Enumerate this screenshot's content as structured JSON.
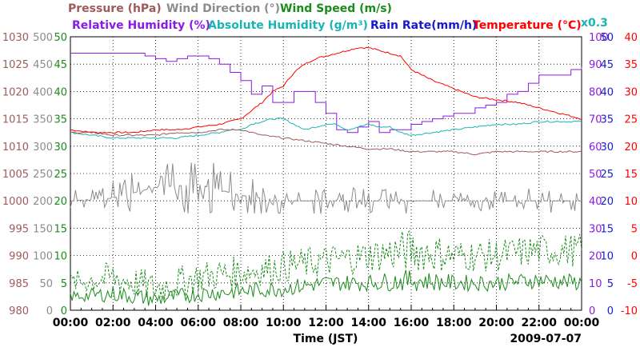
{
  "chart_data": {
    "type": "line",
    "legend_row1": [
      {
        "name": "Pressure (hPa)",
        "color": "#a05a5a"
      },
      {
        "name": "Wind Direction (°)",
        "color": "#8c8c8c"
      },
      {
        "name": "Wind Speed (m/s)",
        "color": "#1a8c1a"
      }
    ],
    "legend_row2": [
      {
        "name": "Relative Humidity (%)",
        "color": "#8a1ae6"
      },
      {
        "name": "Absolute Humidity (g/m³)",
        "color": "#1ab4b4"
      },
      {
        "name": "Rain Rate(mm/h)",
        "color": "#1a1acc"
      },
      {
        "name": "Temperature (°C)",
        "color": "#ff0000"
      }
    ],
    "rain_multiplier_label": "x0.3",
    "xlabel": "Time (JST)",
    "date_label": "2009-07-07",
    "x_ticks": [
      "00:00",
      "02:00",
      "04:00",
      "06:00",
      "08:00",
      "10:00",
      "12:00",
      "14:00",
      "16:00",
      "18:00",
      "20:00",
      "22:00",
      "00:00"
    ],
    "xlim": [
      0,
      24
    ],
    "grid": true,
    "axes_left": [
      {
        "name": "pressure",
        "color": "#a05a5a",
        "range": [
          980,
          1030
        ],
        "ticks": [
          "980",
          "985",
          "990",
          "995",
          "1000",
          "1005",
          "1010",
          "1015",
          "1020",
          "1025",
          "1030"
        ]
      },
      {
        "name": "wind-direction",
        "color": "#8c8c8c",
        "range": [
          0,
          500
        ],
        "ticks": [
          "0",
          "50",
          "100",
          "150",
          "200",
          "250",
          "300",
          "350",
          "400",
          "450",
          "500"
        ]
      },
      {
        "name": "wind-speed",
        "color": "#1a8c1a",
        "range": [
          0,
          50
        ],
        "ticks": [
          "0",
          "5",
          "10",
          "15",
          "20",
          "25",
          "30",
          "35",
          "40",
          "45",
          "50"
        ]
      }
    ],
    "axes_right": [
      {
        "name": "relative-humidity",
        "color": "#8a1ae6",
        "range": [
          0,
          100
        ],
        "ticks": [
          "0",
          "10",
          "20",
          "30",
          "40",
          "50",
          "60",
          "70",
          "80",
          "90",
          "100"
        ]
      },
      {
        "name": "rain-rate",
        "color": "#1a1acc",
        "range": [
          0,
          50
        ],
        "ticks": [
          "0",
          "5",
          "10",
          "15",
          "20",
          "25",
          "30",
          "35",
          "40",
          "45",
          "50"
        ]
      },
      {
        "name": "temperature",
        "color": "#ff0000",
        "range": [
          -10,
          40
        ],
        "ticks": [
          "-10",
          "-5",
          "0",
          "5",
          "10",
          "15",
          "20",
          "25",
          "30",
          "35",
          "40"
        ]
      }
    ],
    "series": [
      {
        "name": "Relative Humidity",
        "axis": "relative-humidity",
        "color": "#8a1ae6",
        "style": "step",
        "x": [
          0,
          1,
          2,
          3,
          3.5,
          4,
          4.5,
          5,
          5.5,
          6,
          6.5,
          7,
          7.5,
          8,
          8.5,
          9,
          9.5,
          10,
          10.5,
          11,
          11.5,
          12,
          12.5,
          13,
          13.5,
          14,
          14.5,
          15,
          15.5,
          16,
          16.5,
          17,
          17.5,
          18,
          18.5,
          19,
          19.5,
          20,
          20.5,
          21,
          21.5,
          22,
          22.5,
          23,
          23.5,
          24
        ],
        "y": [
          94,
          94,
          94,
          94,
          93,
          92,
          91,
          92,
          93,
          93,
          92,
          90,
          87,
          84,
          79,
          82,
          76,
          76,
          80,
          80,
          76,
          72,
          66,
          65,
          67,
          69,
          65,
          66,
          66,
          68,
          69,
          70,
          71,
          72,
          72,
          74,
          75,
          76,
          79,
          80,
          83,
          86,
          86,
          86,
          88,
          89
        ]
      },
      {
        "name": "Temperature",
        "axis": "temperature",
        "color": "#ff0000",
        "style": "line",
        "x": [
          0,
          1,
          2,
          3,
          4,
          5,
          6,
          7,
          7.5,
          8,
          8.5,
          9,
          9.5,
          10,
          10.5,
          11,
          11.5,
          12,
          12.5,
          13,
          13.5,
          14,
          14.5,
          15,
          15.5,
          16,
          17,
          18,
          19,
          20,
          21,
          22,
          23,
          24
        ],
        "y": [
          23,
          22.5,
          22.5,
          22.5,
          23,
          23,
          23.5,
          24,
          24.5,
          25,
          26.5,
          28,
          30,
          31,
          33.5,
          35,
          36,
          36.5,
          37,
          37.5,
          38,
          38,
          37.5,
          37,
          36.5,
          34,
          32,
          30.5,
          29,
          28.5,
          28,
          27,
          26,
          25
        ]
      },
      {
        "name": "Absolute Humidity",
        "axis": "rain-rate",
        "color": "#1ab4b4",
        "style": "line",
        "x": [
          0,
          1,
          2,
          3,
          4,
          5,
          6,
          7,
          7.5,
          8,
          8.5,
          9,
          9.5,
          10,
          10.5,
          11,
          11.5,
          12,
          12.5,
          13,
          13.5,
          14,
          14.5,
          15,
          15.5,
          16,
          17,
          18,
          19,
          20,
          21,
          22,
          23,
          24
        ],
        "y": [
          32.5,
          32,
          31.5,
          31.5,
          31.5,
          31.5,
          32,
          32.5,
          33,
          33,
          34,
          34.5,
          35,
          35,
          34,
          33,
          33.5,
          34,
          34,
          33,
          33.5,
          34,
          33.5,
          33.5,
          32.5,
          32,
          32.5,
          33,
          33.5,
          34,
          34,
          34.5,
          34.5,
          34.5
        ]
      },
      {
        "name": "Pressure",
        "axis": "pressure",
        "color": "#a05a5a",
        "style": "line",
        "x": [
          0,
          1,
          2,
          3,
          4,
          5,
          6,
          7,
          8,
          9,
          10,
          11,
          12,
          13,
          14,
          15,
          16,
          17,
          18,
          19,
          20,
          21,
          22,
          23,
          24
        ],
        "y": [
          1012.5,
          1012.5,
          1012,
          1012,
          1012,
          1012.5,
          1012.5,
          1013,
          1013,
          1012,
          1011.5,
          1011,
          1010.5,
          1010,
          1009.5,
          1009.5,
          1009,
          1009,
          1009,
          1008.5,
          1009,
          1009,
          1009,
          1009,
          1009
        ]
      },
      {
        "name": "Wind Direction",
        "axis": "wind-direction",
        "color": "#8c8c8c",
        "style": "jagged",
        "x": [
          0,
          2,
          4,
          6,
          8,
          10,
          12,
          14,
          16,
          18,
          20,
          22,
          24
        ],
        "y": [
          200,
          205,
          225,
          230,
          210,
          200,
          200,
          200,
          200,
          200,
          200,
          200,
          200
        ],
        "spread": [
          20,
          25,
          40,
          45,
          30,
          20,
          20,
          20,
          20,
          20,
          20,
          20,
          20
        ]
      },
      {
        "name": "Wind Speed (peak)",
        "axis": "wind-speed",
        "color": "#1a8c1a",
        "style": "dashed-jagged",
        "x": [
          0,
          2,
          4,
          6,
          8,
          10,
          12,
          14,
          16,
          18,
          20,
          22,
          24
        ],
        "y": [
          5,
          6,
          4,
          6,
          7,
          8,
          9,
          10,
          11,
          10,
          10,
          11,
          11
        ],
        "spread": [
          2,
          3,
          3,
          3,
          3,
          3,
          3,
          3,
          4,
          3,
          3,
          3,
          3
        ]
      },
      {
        "name": "Wind Speed",
        "axis": "wind-speed",
        "color": "#1a8c1a",
        "style": "jagged",
        "x": [
          0,
          2,
          4,
          6,
          8,
          10,
          12,
          14,
          16,
          18,
          20,
          22,
          24
        ],
        "y": [
          2.5,
          3,
          2,
          3,
          3.5,
          4,
          5,
          5,
          5.5,
          5,
          5,
          5.5,
          5
        ],
        "spread": [
          1,
          1.5,
          1.5,
          1.5,
          1.5,
          1.5,
          1.5,
          1.5,
          2,
          1.5,
          1.5,
          1.5,
          1.5
        ]
      }
    ]
  }
}
